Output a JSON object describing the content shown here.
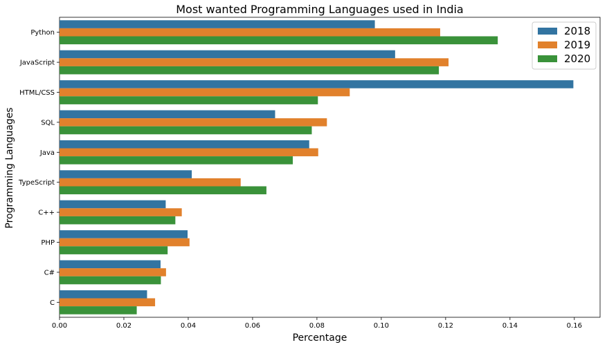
{
  "chart_data": {
    "type": "bar",
    "orientation": "horizontal",
    "title": "Most wanted Programming Languages used in India",
    "xlabel": "Percentage",
    "ylabel": "Programming Languages",
    "xlim": [
      0,
      0.168
    ],
    "xticks": [
      "0.00",
      "0.02",
      "0.04",
      "0.06",
      "0.08",
      "0.10",
      "0.12",
      "0.14",
      "0.16"
    ],
    "grid": false,
    "legend_position": "top-right",
    "categories": [
      "Python",
      "JavaScript",
      "HTML/CSS",
      "SQL",
      "Java",
      "TypeScript",
      "C++",
      "PHP",
      "C#",
      "C"
    ],
    "series": [
      {
        "name": "2018",
        "color": "#3274a1",
        "values": [
          0.098,
          0.1043,
          0.1597,
          0.067,
          0.0776,
          0.0411,
          0.033,
          0.0398,
          0.0314,
          0.0272
        ]
      },
      {
        "name": "2019",
        "color": "#e1812c",
        "values": [
          0.1183,
          0.1209,
          0.0902,
          0.0831,
          0.0804,
          0.0563,
          0.038,
          0.0404,
          0.0331,
          0.0297
        ]
      },
      {
        "name": "2020",
        "color": "#3a923a",
        "values": [
          0.1362,
          0.1179,
          0.0803,
          0.0784,
          0.0725,
          0.0643,
          0.036,
          0.0336,
          0.0315,
          0.024
        ]
      }
    ]
  }
}
